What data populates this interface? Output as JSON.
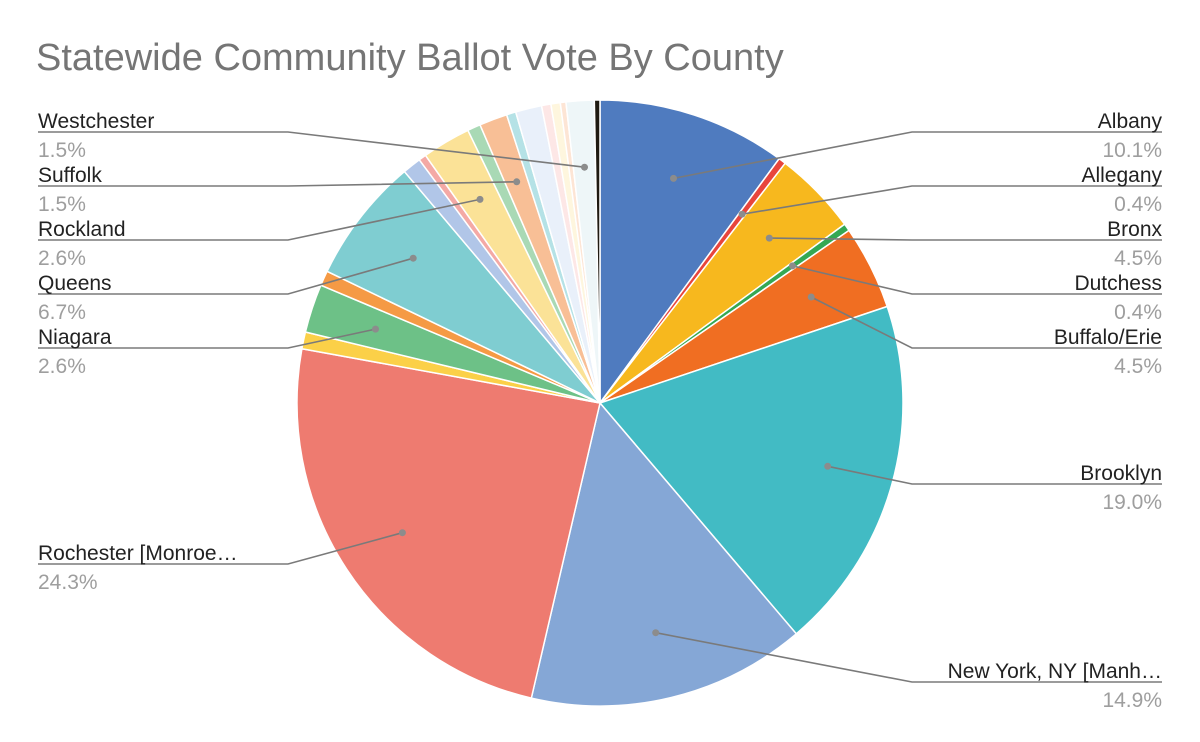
{
  "chart_data": {
    "type": "pie",
    "title": "Statewide Community Ballot Vote By County",
    "start": "12 o'clock",
    "direction": "clockwise",
    "slices": [
      {
        "name": "Albany",
        "value": 10.1,
        "label": "10.1%",
        "color": "#4f7bbf"
      },
      {
        "name": "Allegany",
        "value": 0.4,
        "label": "0.4%",
        "color": "#e8453c"
      },
      {
        "name": "Bronx",
        "value": 4.5,
        "label": "4.5%",
        "color": "#f7b81e"
      },
      {
        "name": "Dutchess",
        "value": 0.4,
        "label": "0.4%",
        "color": "#34a853"
      },
      {
        "name": "Buffalo/Erie",
        "value": 4.5,
        "label": "4.5%",
        "color": "#f06e22"
      },
      {
        "name": "Brooklyn",
        "value": 19.0,
        "label": "19.0%",
        "color": "#42bbc4"
      },
      {
        "name": "New York, NY [Manh…",
        "value": 14.9,
        "label": "14.9%",
        "color": "#85a7d6"
      },
      {
        "name": "Rochester [Monroe…",
        "value": 24.3,
        "label": "24.3%",
        "color": "#ee7b70"
      },
      {
        "name": "",
        "value": 0.9,
        "label": "",
        "color": "#fbd048"
      },
      {
        "name": "Niagara",
        "value": 2.6,
        "label": "2.6%",
        "color": "#6dc187"
      },
      {
        "name": "",
        "value": 0.8,
        "label": "",
        "color": "#f59a45"
      },
      {
        "name": "Queens",
        "value": 6.7,
        "label": "6.7%",
        "color": "#7fcdd1"
      },
      {
        "name": "",
        "value": 1.0,
        "label": "",
        "color": "#b1c6e8"
      },
      {
        "name": "",
        "value": 0.4,
        "label": "",
        "color": "#f4a9a5"
      },
      {
        "name": "Rockland",
        "value": 2.6,
        "label": "2.6%",
        "color": "#fbe297"
      },
      {
        "name": "",
        "value": 0.7,
        "label": "",
        "color": "#a9d9b5"
      },
      {
        "name": "Suffolk",
        "value": 1.5,
        "label": "1.5%",
        "color": "#f8bf96"
      },
      {
        "name": "",
        "value": 0.5,
        "label": "",
        "color": "#b5e2e6"
      },
      {
        "name": "",
        "value": 1.4,
        "label": "",
        "color": "#e9f0fa"
      },
      {
        "name": "",
        "value": 0.5,
        "label": "",
        "color": "#fde7e6"
      },
      {
        "name": "",
        "value": 0.5,
        "label": "",
        "color": "#fef6de"
      },
      {
        "name": "",
        "value": 0.3,
        "label": "",
        "color": "#fde5d5"
      },
      {
        "name": "Westchester",
        "value": 1.5,
        "label": "1.5%",
        "color": "#eef6f8"
      },
      {
        "name": "",
        "value": 0.3,
        "label": "",
        "color": "#1f1a12"
      }
    ],
    "legend": "none",
    "labels": "outside-with-leader-lines"
  }
}
